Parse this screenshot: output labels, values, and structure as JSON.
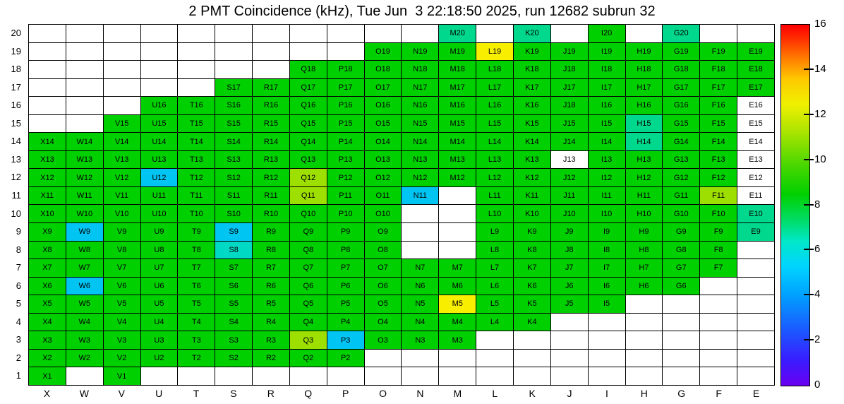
{
  "title": "2 PMT Coincidence (kHz), Tue Jun  3 22:18:50 2025, run 12682 subrun 32",
  "chart_data": {
    "type": "heatmap",
    "title": "2 PMT Coincidence (kHz), Tue Jun  3 22:18:50 2025, run 12682 subrun 32",
    "units": "kHz",
    "columns": [
      "X",
      "W",
      "V",
      "U",
      "T",
      "S",
      "R",
      "Q",
      "P",
      "O",
      "N",
      "M",
      "L",
      "K",
      "J",
      "I",
      "H",
      "G",
      "F",
      "E"
    ],
    "rows_top_to_bottom": [
      20,
      19,
      18,
      17,
      16,
      15,
      14,
      13,
      12,
      11,
      10,
      9,
      8,
      7,
      6,
      5,
      4,
      3,
      2,
      1
    ],
    "colorbar": {
      "min": 0,
      "max": 16,
      "tick_values": [
        16,
        14,
        12,
        10,
        8,
        6,
        4,
        2,
        0
      ],
      "gradient_stops_bottom_to_top": [
        [
          "#6a00f0",
          0
        ],
        [
          "#3a1cff",
          7
        ],
        [
          "#1f4fff",
          14
        ],
        [
          "#00a0ff",
          25
        ],
        [
          "#00d4ff",
          33
        ],
        [
          "#00e8c8",
          40
        ],
        [
          "#00dc64",
          46
        ],
        [
          "#00d000",
          53
        ],
        [
          "#52d800",
          62
        ],
        [
          "#a8e400",
          70
        ],
        [
          "#f0f000",
          78
        ],
        [
          "#ffc800",
          85
        ],
        [
          "#ff7800",
          91
        ],
        [
          "#ff3000",
          96
        ],
        [
          "#ff0000",
          100
        ]
      ]
    },
    "levels": {
      "g": {
        "color": "#00cf00",
        "value": 8.5,
        "name": "green"
      },
      "sp": {
        "color": "#00d88e",
        "value": 7,
        "name": "spring-green"
      },
      "t": {
        "color": "#00d9c4",
        "value": 6,
        "name": "teal"
      },
      "c": {
        "color": "#00c4f2",
        "value": 5,
        "name": "cyan"
      },
      "yg": {
        "color": "#9ddf00",
        "value": 10.5,
        "name": "yellow-green"
      },
      "y": {
        "color": "#f8ee00",
        "value": 12,
        "name": "yellow"
      },
      "w": {
        "color": "#ffffff",
        "value": 0,
        "name": "white"
      }
    },
    "grid": [
      [
        "",
        "",
        "",
        "",
        "",
        "",
        "",
        "",
        "",
        "",
        "",
        "M20:sp",
        "",
        "K20:sp",
        "",
        "I20:g",
        "",
        "G20:sp",
        "",
        ""
      ],
      [
        "",
        "",
        "",
        "",
        "",
        "",
        "",
        "",
        "",
        "O19",
        "N19",
        "M19",
        "L19:y",
        "K19",
        "J19",
        "I19",
        "H19",
        "G19",
        "F19",
        "E19"
      ],
      [
        "",
        "",
        "",
        "",
        "",
        "",
        "",
        "Q18",
        "P18",
        "O18",
        "N18",
        "M18",
        "L18",
        "K18",
        "J18",
        "I18",
        "H18",
        "G18",
        "F18",
        "E18"
      ],
      [
        "",
        "",
        "",
        "",
        "",
        "S17",
        "R17",
        "Q17",
        "P17",
        "O17",
        "N17",
        "M17",
        "L17",
        "K17",
        "J17",
        "I17",
        "H17",
        "G17",
        "F17",
        "E17"
      ],
      [
        "",
        "",
        "",
        "U16",
        "T16",
        "S16",
        "R16",
        "Q16",
        "P16",
        "O16",
        "N16",
        "M16",
        "L16",
        "K16",
        "J18",
        "I16",
        "H16",
        "G16",
        "F16",
        "E16:w"
      ],
      [
        "",
        "",
        "V15",
        "U15",
        "T15",
        "S15",
        "R15",
        "Q15",
        "P15",
        "O15",
        "N15",
        "M15",
        "L15",
        "K15",
        "J15",
        "I15",
        "H15:sp",
        "G15",
        "F15",
        "E15:w"
      ],
      [
        "X14",
        "W14",
        "V14",
        "U14",
        "T14",
        "S14",
        "R14",
        "Q14",
        "P14",
        "O14",
        "N14",
        "M14",
        "L14",
        "K14",
        "J14",
        "I14",
        "H14:sp",
        "G14",
        "F14",
        "E14:w"
      ],
      [
        "X13",
        "W13",
        "V13",
        "U13",
        "T13",
        "S13",
        "R13",
        "Q13",
        "P13",
        "O13",
        "N13",
        "M13",
        "L13",
        "K13",
        "J13:w",
        "I13",
        "H13",
        "G13",
        "F13",
        "E13:w"
      ],
      [
        "X12",
        "W12",
        "V12",
        "U12:c",
        "T12",
        "S12",
        "R12",
        "Q12:yg",
        "P12",
        "O12",
        "N12",
        "M12",
        "L12",
        "K12",
        "J12",
        "I12",
        "H12",
        "G12",
        "F12",
        "E12:w"
      ],
      [
        "X11",
        "W11",
        "V11",
        "U11",
        "T11",
        "S11",
        "R11",
        "Q11:yg",
        "P11",
        "O11",
        "N11:c",
        "",
        "L11",
        "K11",
        "J11",
        "I11",
        "H11",
        "G11",
        "F11:yg",
        "E11:w"
      ],
      [
        "X10",
        "W10",
        "V10",
        "U10",
        "T10",
        "S10",
        "R10",
        "Q10",
        "P10",
        "O10",
        "",
        "",
        "L10",
        "K10",
        "J10",
        "I10",
        "H10",
        "G10",
        "F10",
        "E10:sp"
      ],
      [
        "X9",
        "W9:c",
        "V9",
        "U9",
        "T9",
        "S9:c",
        "R9",
        "Q9",
        "P9",
        "O9",
        "",
        "",
        "L9",
        "K9",
        "J9",
        "I9",
        "H9",
        "G9",
        "F9",
        "E9:sp"
      ],
      [
        "X8",
        "W8",
        "V8",
        "U8",
        "T8",
        "S8:t",
        "R8",
        "Q8",
        "P8",
        "O8",
        "",
        "",
        "L8",
        "K8",
        "J8",
        "I8",
        "H8",
        "G8",
        "F8",
        ""
      ],
      [
        "X7",
        "W7",
        "V7",
        "U7",
        "T7",
        "S7",
        "R7",
        "Q7",
        "P7",
        "O7",
        "N7",
        "M7",
        "L7",
        "K7",
        "J7",
        "I7",
        "H7",
        "G7",
        "F7",
        ""
      ],
      [
        "X6",
        "W6:c",
        "V6",
        "U6",
        "T6",
        "S6",
        "R6",
        "Q6",
        "P6",
        "O6",
        "N6",
        "M6",
        "L6",
        "K6",
        "J6",
        "I6",
        "H6",
        "G6",
        "",
        ""
      ],
      [
        "X5",
        "W5",
        "V5",
        "U5",
        "T5",
        "S5",
        "R5",
        "Q5",
        "P5",
        "O5",
        "N5",
        "M5:y",
        "L5",
        "K5",
        "J5",
        "I5",
        "",
        "",
        "",
        ""
      ],
      [
        "X4",
        "W4",
        "V4",
        "U4",
        "T4",
        "S4",
        "R4",
        "Q4",
        "P4",
        "O4",
        "N4",
        "M4",
        "L4",
        "K4",
        "",
        "",
        "",
        "",
        "",
        ""
      ],
      [
        "X3",
        "W3",
        "V3",
        "U3",
        "T3",
        "S3",
        "R3",
        "Q3:yg",
        "P3:c",
        "O3",
        "N3",
        "M3",
        "",
        "",
        "",
        "",
        "",
        "",
        "",
        ""
      ],
      [
        "X2",
        "W2",
        "V2",
        "U2",
        "T2",
        "S2",
        "R2",
        "Q2",
        "P2",
        "",
        "",
        "",
        "",
        "",
        "",
        "",
        "",
        "",
        "",
        ""
      ],
      [
        "X1",
        "",
        "V1",
        "",
        "",
        "",
        "",
        "",
        "",
        "",
        "",
        "",
        "",
        "",
        "",
        "",
        "",
        "",
        "",
        ""
      ]
    ]
  }
}
